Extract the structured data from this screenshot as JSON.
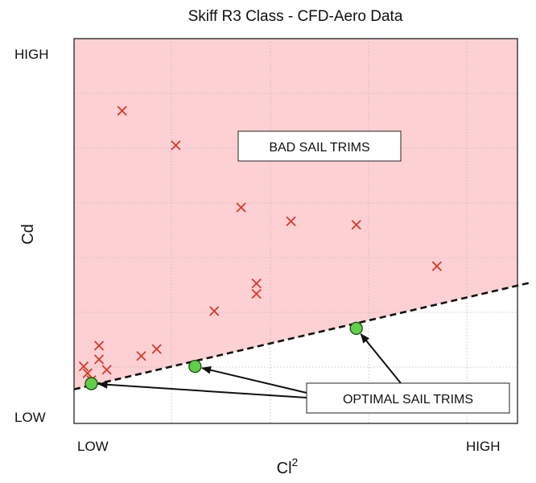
{
  "chart_data": {
    "type": "scatter",
    "title": "Skiff R3 Class - CFD-Aero Data",
    "xlabel": "Cl",
    "xlabel_superscript": "2",
    "ylabel": "Cd",
    "x_tick_labels": [
      "LOW",
      "HIGH"
    ],
    "y_tick_labels": [
      "HIGH",
      "LOW"
    ],
    "xlim": [
      0,
      1
    ],
    "ylim": [
      0,
      1
    ],
    "grid": true,
    "regions": [
      {
        "name": "bad",
        "fill": "#fdd0d3",
        "boundary_start": [
          0.0,
          0.04
        ],
        "boundary_end": [
          1.0,
          0.3
        ]
      }
    ],
    "series": [
      {
        "marker": "x",
        "color": "#d43a2a",
        "points": [
          [
            0.1,
            0.84
          ],
          [
            0.24,
            0.74
          ],
          [
            0.41,
            0.56
          ],
          [
            0.54,
            0.52
          ],
          [
            0.71,
            0.51
          ],
          [
            0.92,
            0.39
          ],
          [
            0.45,
            0.34
          ],
          [
            0.45,
            0.31
          ],
          [
            0.34,
            0.26
          ],
          [
            0.19,
            0.15
          ],
          [
            0.15,
            0.13
          ],
          [
            0.04,
            0.16
          ],
          [
            0.04,
            0.12
          ],
          [
            0.0,
            0.1
          ],
          [
            0.06,
            0.09
          ],
          [
            0.01,
            0.08
          ],
          [
            0.02,
            0.06
          ]
        ]
      },
      {
        "marker": "circle",
        "color": "#5fcf48",
        "points": [
          [
            0.02,
            0.05
          ],
          [
            0.29,
            0.1
          ],
          [
            0.71,
            0.21
          ]
        ]
      }
    ],
    "annotations": [
      {
        "text": "BAD SAIL TRIMS"
      },
      {
        "text": "OPTIMAL SAIL TRIMS"
      }
    ]
  }
}
